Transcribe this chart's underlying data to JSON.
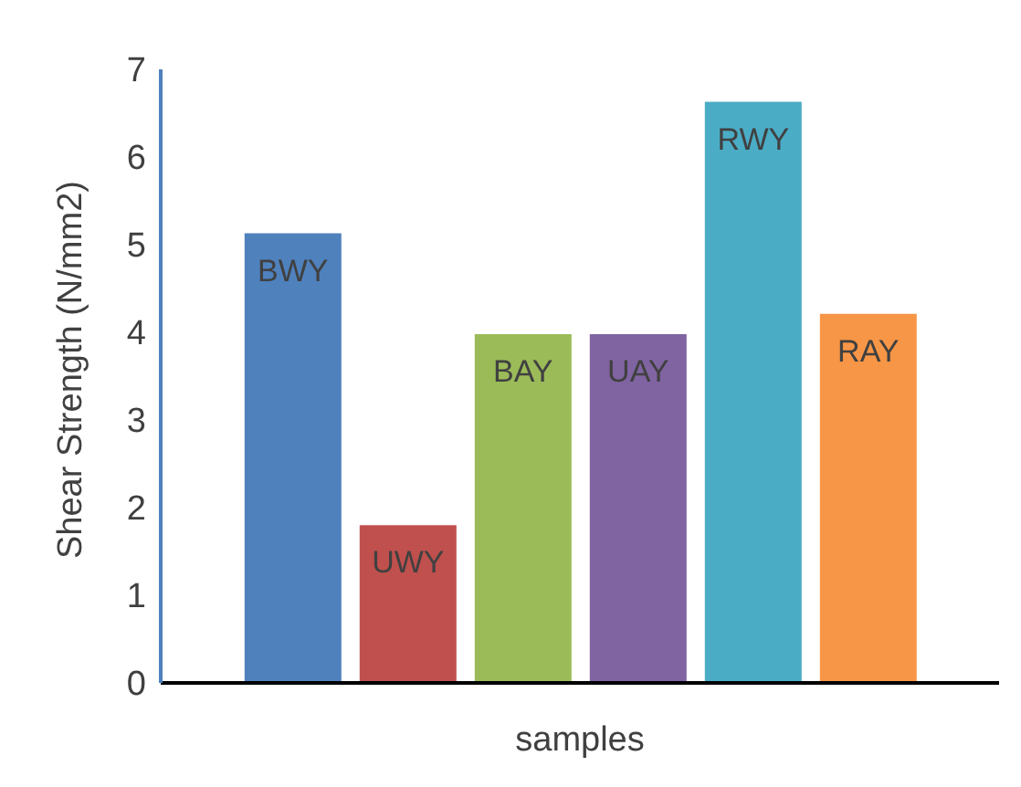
{
  "chart_data": {
    "type": "bar",
    "ylabel": "Shear Strength (N/mm2)",
    "xlabel": "samples",
    "categories": [
      null
    ],
    "series": [
      {
        "name": "BWY",
        "color": "#4f81bd",
        "values": [
          5.13
        ]
      },
      {
        "name": "UWY",
        "color": "#c0504d",
        "values": [
          1.8
        ]
      },
      {
        "name": "BAY",
        "color": "#9bbb59",
        "values": [
          3.98
        ]
      },
      {
        "name": "UAY",
        "color": "#8064a2",
        "values": [
          3.98
        ]
      },
      {
        "name": "RWY",
        "color": "#4bacc6",
        "values": [
          6.63
        ]
      },
      {
        "name": "RAY",
        "color": "#f79646",
        "values": [
          4.21
        ]
      }
    ],
    "ylim": [
      0,
      7
    ],
    "yticks": [
      0,
      1,
      2,
      3,
      4,
      5,
      6,
      7
    ],
    "grid": false,
    "legend": false
  }
}
